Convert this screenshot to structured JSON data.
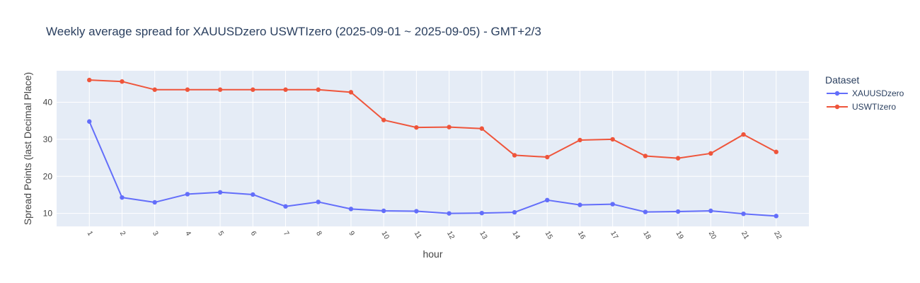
{
  "chart_data": {
    "type": "line",
    "title": "Weekly average spread for  XAUUSDzero USWTIzero (2025-09-01 ~ 2025-09-05) - GMT+2/3",
    "xlabel": "hour",
    "ylabel": "Spread Points (last Decimal Place)",
    "x": [
      1,
      2,
      3,
      4,
      5,
      6,
      7,
      8,
      9,
      10,
      11,
      12,
      13,
      14,
      15,
      16,
      17,
      18,
      19,
      20,
      21,
      22
    ],
    "yticks": [
      10,
      20,
      30,
      40
    ],
    "ylim": [
      6.5,
      48.5
    ],
    "xlim": [
      0,
      23
    ],
    "grid": true,
    "legend": {
      "title": "Dataset",
      "placement": "right"
    },
    "series": [
      {
        "name": "XAUUSDzero",
        "color": "#636efa",
        "values": [
          34.8,
          14.3,
          13.0,
          15.2,
          15.7,
          15.1,
          11.9,
          13.1,
          11.2,
          10.7,
          10.6,
          10.0,
          10.1,
          10.3,
          13.6,
          12.3,
          12.5,
          10.4,
          10.5,
          10.7,
          9.9,
          9.3
        ]
      },
      {
        "name": "USWTIzero",
        "color": "#ef553b",
        "values": [
          46.0,
          45.6,
          43.4,
          43.4,
          43.4,
          43.4,
          43.4,
          43.4,
          42.7,
          35.2,
          33.2,
          33.3,
          32.9,
          25.7,
          25.2,
          29.8,
          30.0,
          25.5,
          24.9,
          26.2,
          31.3,
          26.6
        ]
      }
    ]
  }
}
